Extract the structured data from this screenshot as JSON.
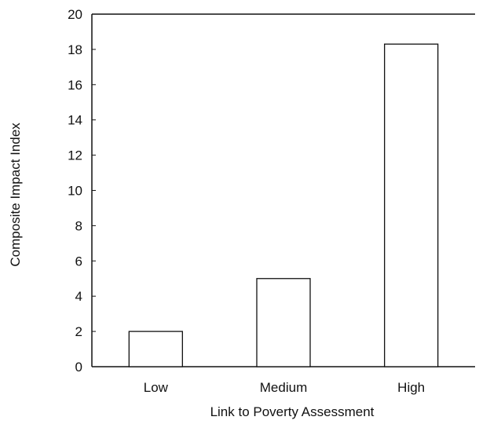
{
  "chart_data": {
    "type": "bar",
    "title": "",
    "xlabel": "Link to Poverty Assessment",
    "ylabel": "Composite Impact Index",
    "categories": [
      "Low",
      "Medium",
      "High"
    ],
    "values": [
      2,
      5,
      18.3
    ],
    "ylim": [
      0,
      20
    ],
    "yticks": [
      0,
      2,
      4,
      6,
      8,
      10,
      12,
      14,
      16,
      18,
      20
    ],
    "ytick_labels": [
      "0",
      "2",
      "4",
      "6",
      "8",
      "10",
      "12",
      "14",
      "16",
      "18",
      "20"
    ],
    "grid": false,
    "legend": "none",
    "colors": {
      "bar_fill": "#ffffff",
      "bar_stroke": "#111111",
      "axis": "#111111"
    }
  }
}
